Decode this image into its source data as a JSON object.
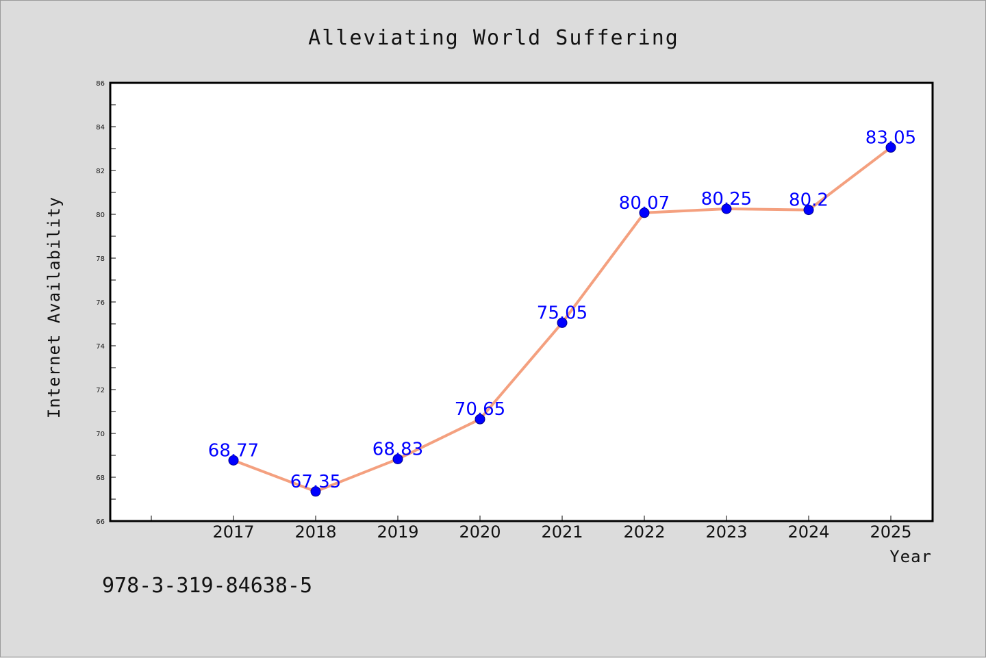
{
  "colors": {
    "background": "#dcdcdc",
    "plot_background": "#ffffff",
    "line": "#f4a07f",
    "marker": "#0000ff",
    "data_label": "#0000ff"
  },
  "isbn": "978-3-319-84638-5",
  "chart_data": {
    "type": "line",
    "title": "Alleviating World Suffering",
    "xlabel": "Year",
    "ylabel": "Internet Availability",
    "categories": [
      "2017",
      "2018",
      "2019",
      "2020",
      "2021",
      "2022",
      "2023",
      "2024",
      "2025"
    ],
    "series": [
      {
        "values": [
          68.77,
          67.35,
          68.83,
          70.65,
          75.05,
          80.07,
          80.25,
          80.2,
          83.05
        ],
        "labels": [
          "68.77",
          "67.35",
          "68.83",
          "70.65",
          "75.05",
          "80.07",
          "80.25",
          "80.2",
          "83.05"
        ]
      }
    ],
    "ylim": [
      66,
      86
    ],
    "yticks": [
      66,
      68,
      70,
      72,
      74,
      76,
      78,
      80,
      82,
      84,
      86
    ],
    "grid": false,
    "legend": "none"
  }
}
